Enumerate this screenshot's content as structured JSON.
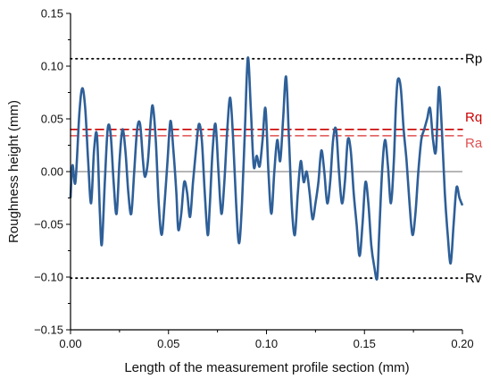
{
  "chart_data": {
    "type": "line",
    "title": "",
    "xlabel": "Length of the measurement profile section (mm)",
    "ylabel": "Roughness height (mm)",
    "xlim": [
      0.0,
      0.2
    ],
    "ylim": [
      -0.15,
      0.15
    ],
    "x_ticks": [
      "0.00",
      "0.05",
      "0.10",
      "0.15",
      "0.20"
    ],
    "y_ticks": [
      "-0.15",
      "-0.10",
      "-0.05",
      "0.00",
      "0.05",
      "0.10",
      "0.15"
    ],
    "grid": false,
    "zero_line": true,
    "reference_lines": [
      {
        "label": "Rp",
        "y": 0.107,
        "style": "dotted",
        "color": "#000000"
      },
      {
        "label": "Rq",
        "y": 0.04,
        "style": "dashed",
        "color": "#cc0000"
      },
      {
        "label": "Ra",
        "y": 0.034,
        "style": "dashed",
        "color": "#e05050"
      },
      {
        "label": "Rv",
        "y": -0.101,
        "style": "dotted",
        "color": "#000000"
      }
    ],
    "series": [
      {
        "color": "#2e5f98",
        "points": [
          [
            0.0,
            -0.025
          ],
          [
            0.001,
            0.006
          ],
          [
            0.0025,
            -0.01
          ],
          [
            0.0045,
            0.055
          ],
          [
            0.006,
            0.079
          ],
          [
            0.0075,
            0.06
          ],
          [
            0.009,
            0.01
          ],
          [
            0.0105,
            -0.03
          ],
          [
            0.012,
            0.02
          ],
          [
            0.0135,
            0.034
          ],
          [
            0.015,
            -0.04
          ],
          [
            0.016,
            -0.069
          ],
          [
            0.0175,
            -0.01
          ],
          [
            0.019,
            0.041
          ],
          [
            0.0205,
            0.035
          ],
          [
            0.022,
            -0.01
          ],
          [
            0.0235,
            -0.04
          ],
          [
            0.025,
            0.01
          ],
          [
            0.0265,
            0.04
          ],
          [
            0.028,
            0.02
          ],
          [
            0.0295,
            -0.02
          ],
          [
            0.031,
            -0.04
          ],
          [
            0.0325,
            0.0
          ],
          [
            0.034,
            0.04
          ],
          [
            0.0355,
            0.045
          ],
          [
            0.037,
            0.01
          ],
          [
            0.038,
            -0.005
          ],
          [
            0.0395,
            0.01
          ],
          [
            0.041,
            0.05
          ],
          [
            0.042,
            0.062
          ],
          [
            0.0435,
            0.03
          ],
          [
            0.045,
            -0.03
          ],
          [
            0.0465,
            -0.06
          ],
          [
            0.048,
            -0.03
          ],
          [
            0.0495,
            0.01
          ],
          [
            0.051,
            0.048
          ],
          [
            0.0525,
            0.02
          ],
          [
            0.054,
            -0.02
          ],
          [
            0.055,
            -0.055
          ],
          [
            0.0565,
            -0.04
          ],
          [
            0.058,
            -0.01
          ],
          [
            0.0595,
            -0.02
          ],
          [
            0.061,
            -0.043
          ],
          [
            0.0625,
            -0.01
          ],
          [
            0.064,
            0.02
          ],
          [
            0.0655,
            0.045
          ],
          [
            0.067,
            0.03
          ],
          [
            0.0685,
            -0.02
          ],
          [
            0.07,
            -0.06
          ],
          [
            0.071,
            -0.035
          ],
          [
            0.0725,
            0.02
          ],
          [
            0.074,
            0.045
          ],
          [
            0.0755,
            0.0
          ],
          [
            0.077,
            -0.04
          ],
          [
            0.0785,
            -0.01
          ],
          [
            0.08,
            0.04
          ],
          [
            0.0815,
            0.07
          ],
          [
            0.083,
            0.03
          ],
          [
            0.0845,
            -0.03
          ],
          [
            0.086,
            -0.068
          ],
          [
            0.0875,
            -0.03
          ],
          [
            0.089,
            0.04
          ],
          [
            0.0905,
            0.108
          ],
          [
            0.092,
            0.06
          ],
          [
            0.0935,
            0.005
          ],
          [
            0.095,
            0.015
          ],
          [
            0.0965,
            0.005
          ],
          [
            0.098,
            0.03
          ],
          [
            0.0995,
            0.06
          ],
          [
            0.101,
            0.0
          ],
          [
            0.1025,
            -0.04
          ],
          [
            0.104,
            0.0
          ],
          [
            0.1055,
            0.03
          ],
          [
            0.107,
            0.01
          ],
          [
            0.1085,
            0.05
          ],
          [
            0.11,
            0.09
          ],
          [
            0.1115,
            0.03
          ],
          [
            0.113,
            -0.035
          ],
          [
            0.1145,
            -0.06
          ],
          [
            0.116,
            -0.02
          ],
          [
            0.1175,
            0.01
          ],
          [
            0.119,
            -0.01
          ],
          [
            0.1205,
            0.0
          ],
          [
            0.122,
            -0.02
          ],
          [
            0.1235,
            -0.045
          ],
          [
            0.125,
            -0.03
          ],
          [
            0.1265,
            -0.01
          ],
          [
            0.128,
            0.02
          ],
          [
            0.1295,
            0.0
          ],
          [
            0.131,
            -0.03
          ],
          [
            0.1325,
            -0.01
          ],
          [
            0.134,
            0.03
          ],
          [
            0.1355,
            0.04
          ],
          [
            0.137,
            0.0
          ],
          [
            0.1385,
            -0.03
          ],
          [
            0.14,
            -0.01
          ],
          [
            0.1415,
            0.03
          ],
          [
            0.143,
            0.02
          ],
          [
            0.1445,
            -0.02
          ],
          [
            0.146,
            -0.05
          ],
          [
            0.1475,
            -0.08
          ],
          [
            0.149,
            -0.05
          ],
          [
            0.1505,
            -0.01
          ],
          [
            0.152,
            -0.03
          ],
          [
            0.1535,
            -0.07
          ],
          [
            0.155,
            -0.09
          ],
          [
            0.1565,
            -0.101
          ],
          [
            0.1575,
            -0.06
          ],
          [
            0.159,
            0.0
          ],
          [
            0.1605,
            0.03
          ],
          [
            0.162,
            0.005
          ],
          [
            0.1635,
            -0.03
          ],
          [
            0.165,
            0.01
          ],
          [
            0.166,
            0.06
          ],
          [
            0.167,
            0.087
          ],
          [
            0.1685,
            0.08
          ],
          [
            0.17,
            0.04
          ],
          [
            0.1715,
            0.01
          ],
          [
            0.173,
            -0.03
          ],
          [
            0.1745,
            -0.06
          ],
          [
            0.176,
            -0.04
          ],
          [
            0.1775,
            0.0
          ],
          [
            0.179,
            0.03
          ],
          [
            0.1805,
            0.04
          ],
          [
            0.182,
            0.05
          ],
          [
            0.1835,
            0.06
          ],
          [
            0.185,
            0.03
          ],
          [
            0.1865,
            0.02
          ],
          [
            0.188,
            0.08
          ],
          [
            0.1895,
            0.04
          ],
          [
            0.191,
            -0.02
          ],
          [
            0.1925,
            -0.06
          ],
          [
            0.194,
            -0.087
          ],
          [
            0.1955,
            -0.05
          ],
          [
            0.197,
            -0.015
          ],
          [
            0.1985,
            -0.025
          ],
          [
            0.2,
            -0.032
          ]
        ]
      }
    ]
  }
}
